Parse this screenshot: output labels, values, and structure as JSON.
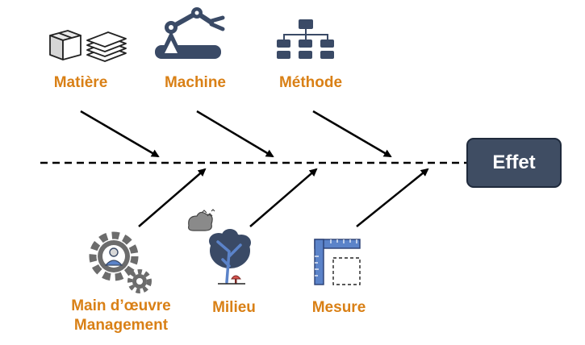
{
  "colors": {
    "cause_label": "#d98016",
    "effect_box": "#3f4d63",
    "effect_text": "#ffffff",
    "icon_dark": "#3a4a66",
    "icon_blue": "#5b83c9",
    "icon_gray": "#6c6c6c",
    "arrow": "#000000"
  },
  "effect": {
    "label": "Effet"
  },
  "causes_top": [
    {
      "label": "Matière",
      "icon": "materials-icon"
    },
    {
      "label": "Machine",
      "icon": "robot-arm-icon"
    },
    {
      "label": "Méthode",
      "icon": "flowchart-icon"
    }
  ],
  "causes_bottom": [
    {
      "label_line1": "Main d’œuvre",
      "label_line2": "Management",
      "icon": "gears-person-icon"
    },
    {
      "label": "Milieu",
      "icon": "environment-tree-icon"
    },
    {
      "label": "Mesure",
      "icon": "ruler-icon"
    }
  ]
}
